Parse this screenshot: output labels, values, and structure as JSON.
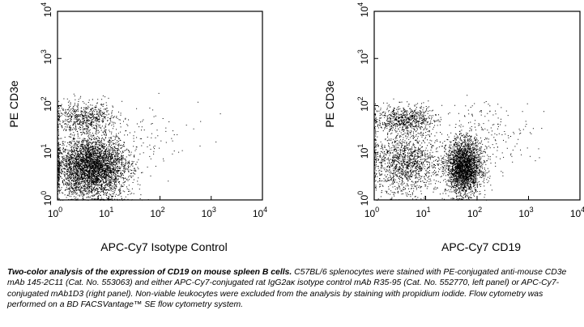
{
  "chart_data": [
    {
      "type": "scatter",
      "title": "",
      "xlabel": "APC-Cy7 Isotype Control",
      "ylabel": "PE CD3e",
      "xscale": "log",
      "yscale": "log",
      "xlim": [
        1,
        10000
      ],
      "ylim": [
        1,
        10000
      ],
      "x_ticks": [
        {
          "base": "10",
          "exp": "0"
        },
        {
          "base": "10",
          "exp": "1"
        },
        {
          "base": "10",
          "exp": "2"
        },
        {
          "base": "10",
          "exp": "3"
        },
        {
          "base": "10",
          "exp": "4"
        }
      ],
      "y_ticks": [
        {
          "base": "10",
          "exp": "0"
        },
        {
          "base": "10",
          "exp": "1"
        },
        {
          "base": "10",
          "exp": "2"
        },
        {
          "base": "10",
          "exp": "3"
        },
        {
          "base": "10",
          "exp": "4"
        }
      ],
      "grid": false,
      "populations": [
        {
          "center": [
            4.5,
            5
          ],
          "spread_decades": [
            0.35,
            0.32
          ],
          "events": 5200
        },
        {
          "center": [
            3.5,
            55
          ],
          "spread_decades": [
            0.3,
            0.17
          ],
          "events": 650
        },
        {
          "center": [
            40,
            20
          ],
          "spread_decades": [
            0.6,
            0.35
          ],
          "events": 110
        }
      ]
    },
    {
      "type": "scatter",
      "title": "",
      "xlabel": "APC-Cy7 CD19",
      "ylabel": "PE CD3e",
      "xscale": "log",
      "yscale": "log",
      "xlim": [
        1,
        10000
      ],
      "ylim": [
        1,
        10000
      ],
      "x_ticks": [
        {
          "base": "10",
          "exp": "0"
        },
        {
          "base": "10",
          "exp": "1"
        },
        {
          "base": "10",
          "exp": "2"
        },
        {
          "base": "10",
          "exp": "3"
        },
        {
          "base": "10",
          "exp": "4"
        }
      ],
      "y_ticks": [
        {
          "base": "10",
          "exp": "0"
        },
        {
          "base": "10",
          "exp": "1"
        },
        {
          "base": "10",
          "exp": "2"
        },
        {
          "base": "10",
          "exp": "3"
        },
        {
          "base": "10",
          "exp": "4"
        }
      ],
      "grid": false,
      "populations": [
        {
          "center": [
            55,
            5
          ],
          "spread_decades": [
            0.17,
            0.28
          ],
          "events": 3300
        },
        {
          "center": [
            4,
            6
          ],
          "spread_decades": [
            0.35,
            0.33
          ],
          "events": 1400
        },
        {
          "center": [
            4,
            50
          ],
          "spread_decades": [
            0.3,
            0.15
          ],
          "events": 750
        },
        {
          "center": [
            150,
            25
          ],
          "spread_decades": [
            0.45,
            0.35
          ],
          "events": 220
        }
      ]
    }
  ],
  "caption": {
    "title": "Two-color analysis of the expression of CD19 on mouse spleen B cells.",
    "body": "C57BL/6 splenocytes were stained with PE-conjugated anti-mouse CD3e mAb 145-2C11 (Cat. No. 553063) and either APC-Cy7-conjugated rat IgG2aκ isotype control mAb R35-95 (Cat. No. 552770, left panel) or APC-Cy7-conjugated mAb1D3 (right panel). Non-viable leukocytes were excluded from the analysis by staining with propidium iodide. Flow cytometry was performed on a BD FACSVantage™ SE flow cytometry system."
  }
}
